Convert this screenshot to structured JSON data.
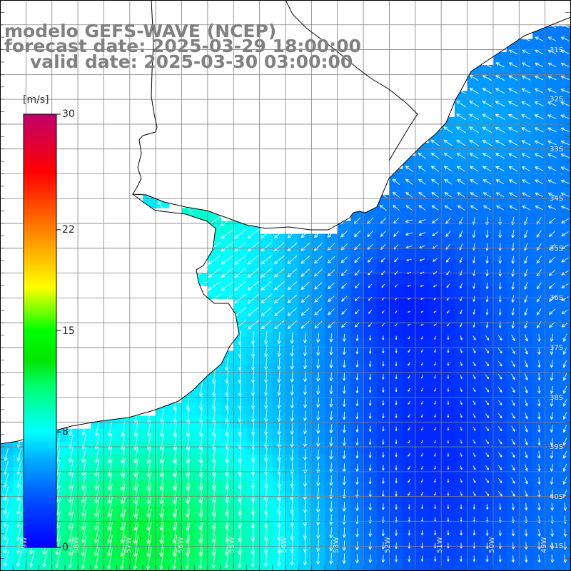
{
  "title": {
    "line1": "modelo GEFS-WAVE (NCEP)",
    "line2": "forecast date: 2025-03-29 18:00:00",
    "line3": "valid date: 2025-03-30 03:00:00"
  },
  "colorbar": {
    "unit": "[m/s]",
    "tick_labels": [
      "30",
      "22",
      "15",
      "8",
      "0"
    ],
    "tick_values": [
      30,
      22,
      15,
      8,
      0
    ],
    "range": [
      0,
      30
    ],
    "colors": [
      "#0000ff",
      "#00c8ff",
      "#00ffff",
      "#00ff00",
      "#ffff00",
      "#ff8000",
      "#ff0000",
      "#c0006a"
    ]
  },
  "map": {
    "variable": "wind speed and direction",
    "lon_range": [
      -59.5,
      -48.5
    ],
    "lat_range": [
      -41.5,
      -30
    ],
    "lat_labels": [
      "31S",
      "32S",
      "33S",
      "34S",
      "35S",
      "36S",
      "37S",
      "38S",
      "39S",
      "40S",
      "41S"
    ],
    "lat_values": [
      -31,
      -32,
      -33,
      -34,
      -35,
      -36,
      -37,
      -38,
      -39,
      -40,
      -41
    ],
    "lon_labels": [
      "59W",
      "58W",
      "57W",
      "56W",
      "55W",
      "54W",
      "53W",
      "52W",
      "51W",
      "50W",
      "49W"
    ],
    "lon_values": [
      -59,
      -58,
      -57,
      -56,
      -55,
      -54,
      -53,
      -52,
      -51,
      -50,
      -49
    ],
    "land_color": "#ffffff",
    "coast_color": "#000000",
    "grid_color": "#808080"
  }
}
